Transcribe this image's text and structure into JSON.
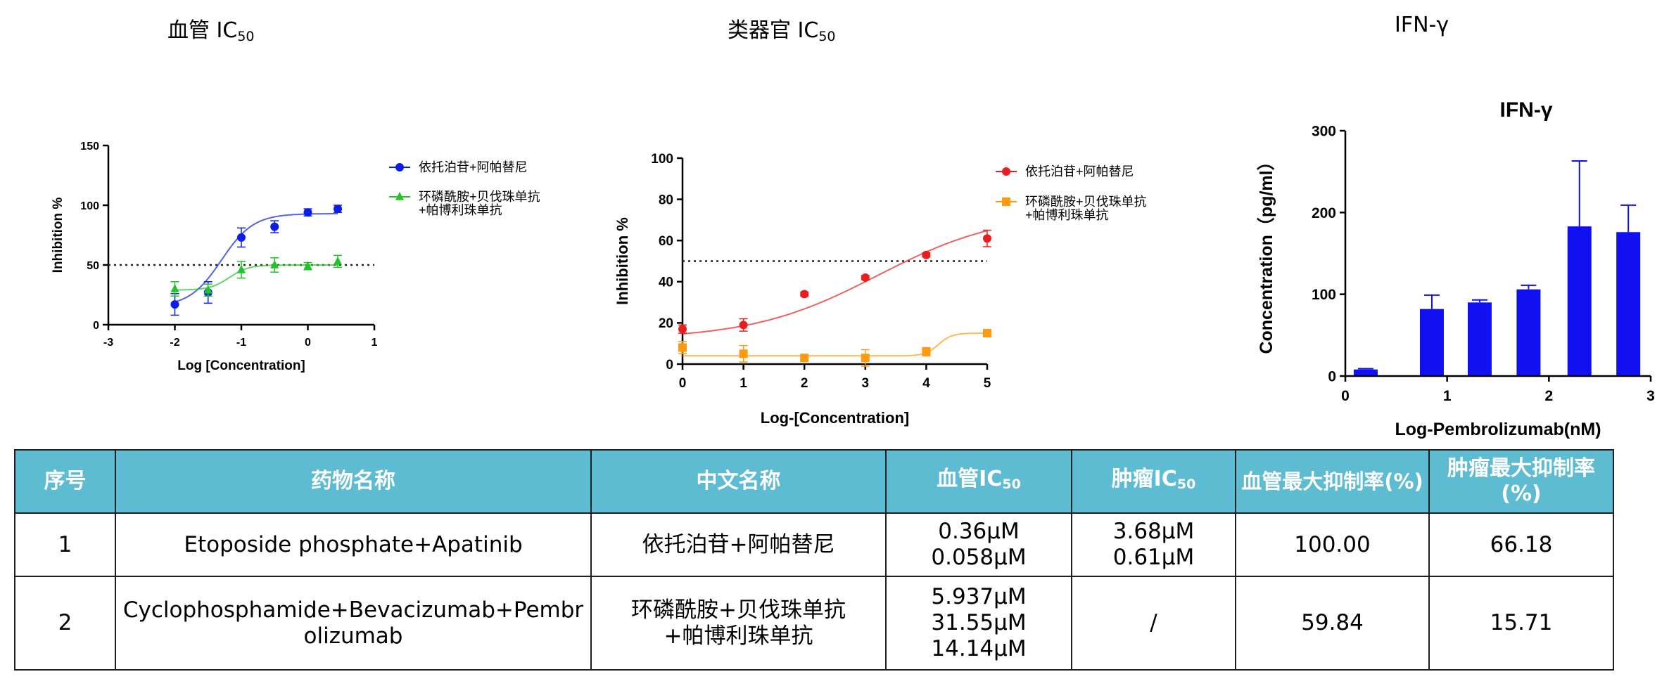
{
  "titles": {
    "vessel": {
      "main": "血管 IC",
      "sub": "50"
    },
    "organoid": {
      "main": "类器官 IC",
      "sub": "50"
    },
    "ifn": "IFN-γ"
  },
  "chart_data": [
    {
      "type": "scatter",
      "title": "",
      "xlabel": "Log [Concentration]",
      "ylabel": "Inhibition %",
      "xlim": [
        -3,
        1
      ],
      "ylim": [
        0,
        150
      ],
      "xticks": [
        "-3",
        "-2",
        "-1",
        "0",
        "1"
      ],
      "yticks": [
        "0",
        "50",
        "100",
        "150"
      ],
      "reference_line": 50,
      "legend_position": "top-right",
      "series": [
        {
          "name": "依托泊苷+阿帕替尼",
          "color": "#0a1ee6",
          "marker": "circle",
          "x": [
            -2,
            -1.5,
            -1,
            -0.5,
            0,
            0.45
          ],
          "y": [
            17,
            27,
            73,
            82,
            94,
            97
          ],
          "err": [
            9,
            9,
            8,
            5,
            3,
            3
          ],
          "fit": {
            "bottom": 15,
            "top": 93,
            "logic50": -1.3,
            "hill": 1.8
          }
        },
        {
          "name": "环磷酰胺+贝伐珠单抗+帕博利珠单抗",
          "color": "#22c22a",
          "marker": "triangle",
          "x": [
            -2,
            -1.5,
            -1,
            -0.5,
            0,
            0.45
          ],
          "y": [
            30,
            29,
            46,
            50,
            49,
            53
          ],
          "err": [
            6,
            5,
            7,
            6,
            3,
            5
          ],
          "fit": {
            "bottom": 29,
            "top": 50,
            "logic50": -1.18,
            "hill": 3
          }
        }
      ]
    },
    {
      "type": "scatter",
      "title": "",
      "xlabel": "Log-[Concentration]",
      "ylabel": "Inhibition %",
      "xlim": [
        0,
        5
      ],
      "ylim": [
        0,
        100
      ],
      "xticks": [
        "0",
        "1",
        "2",
        "3",
        "4",
        "5"
      ],
      "yticks": [
        "0",
        "20",
        "40",
        "60",
        "80",
        "100"
      ],
      "reference_line": 50,
      "legend_position": "top-right",
      "series": [
        {
          "name": "依托泊苷+阿帕替尼",
          "color": "#e81e1e",
          "marker": "circle",
          "x": [
            0,
            1,
            2,
            3,
            4,
            5
          ],
          "y": [
            17,
            19,
            34,
            42,
            53,
            61
          ],
          "err": [
            2,
            3,
            1,
            1,
            1,
            4
          ],
          "fit": {
            "bottom": 12,
            "top": 74,
            "logic50": 3.2,
            "hill": 0.42
          }
        },
        {
          "name": "环磷酰胺+贝伐珠单抗+帕博利珠单抗",
          "color": "#ff9a10",
          "marker": "square",
          "x": [
            0,
            1,
            2,
            3,
            4,
            5
          ],
          "y": [
            8,
            5,
            3,
            3,
            6,
            15
          ],
          "err": [
            3,
            4,
            1,
            4,
            2,
            1
          ],
          "fit": {
            "bottom": 4,
            "top": 15,
            "logic50": 4.2,
            "hill": 4
          }
        }
      ]
    },
    {
      "type": "bar",
      "title": "IFN-γ",
      "xlabel": "Log-Pembrolizumab(nM)",
      "ylabel": "Concentration（pg/ml）",
      "xlim": [
        0,
        3
      ],
      "ylim": [
        0,
        300
      ],
      "xticks": [
        "0",
        "1",
        "2",
        "3"
      ],
      "yticks": [
        "0",
        "100",
        "200",
        "300"
      ],
      "series": [
        {
          "name": "",
          "color": "#1010f0",
          "x": [
            0.2,
            0.85,
            1.32,
            1.8,
            2.3,
            2.78
          ],
          "values": [
            8,
            82,
            90,
            106,
            183,
            176
          ],
          "err": [
            1,
            17,
            3,
            5,
            80,
            33
          ]
        }
      ]
    }
  ],
  "table": {
    "headers": {
      "index": "序号",
      "drug_name": "药物名称",
      "cn_name": "中文名称",
      "vessel_ic": {
        "main": "血管IC",
        "sub": "50"
      },
      "tumor_ic": {
        "main": "肿瘤IC",
        "sub": "50"
      },
      "vessel_max": "血管最大抑制率(%)",
      "tumor_max": "肿瘤最大抑制率(%)"
    },
    "rows": [
      {
        "index": "1",
        "drug_name": "Etoposide phosphate+Apatinib",
        "cn_name": [
          "依托泊苷+阿帕替尼"
        ],
        "vessel_ic": [
          "0.36μM",
          "0.058μM"
        ],
        "tumor_ic": [
          "3.68μM",
          "0.61μM"
        ],
        "vessel_max": "100.00",
        "tumor_max": "66.18"
      },
      {
        "index": "2",
        "drug_name": "Cyclophosphamide+Bevacizumab+Pembrolizumab",
        "cn_name": [
          "环磷酰胺+贝伐珠单抗",
          "+帕博利珠单抗"
        ],
        "vessel_ic": [
          "5.937μM",
          "31.55μM",
          "14.14μM"
        ],
        "tumor_ic": [
          "/"
        ],
        "vessel_max": "59.84",
        "tumor_max": "15.71"
      }
    ]
  }
}
